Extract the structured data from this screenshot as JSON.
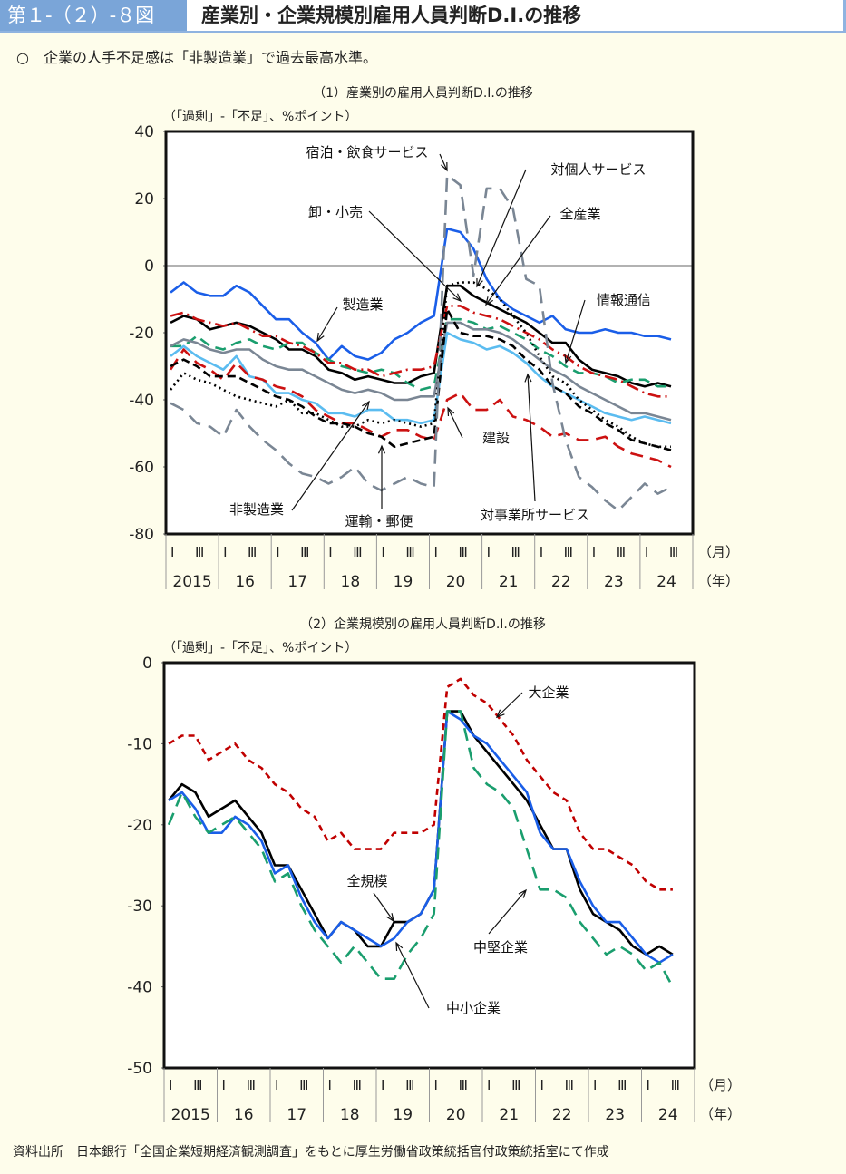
{
  "header": {
    "figure_number": "第１-（２）-８図",
    "title": "産業別・企業規模別雇用人員判断D.I.の推移"
  },
  "lead": "○　企業の人手不足感は「非製造業」で過去最高水準。",
  "source": "資料出所　日本銀行「全国企業短期経済観測調査」をもとに厚生労働省政策統括官付政策統括室にて作成",
  "colors": {
    "background": "#fefdeb",
    "header_accent": "#7aa5d8"
  },
  "chart_data": [
    {
      "type": "line",
      "title": "（1）産業別の雇用人員判断D.I.の推移",
      "ylabel": "（「過剰」-「不足」、%ポイント）",
      "ylim": [
        -80,
        40
      ],
      "yticks": [
        "40",
        "20",
        "0",
        "-20",
        "-40",
        "-60",
        "-80"
      ],
      "ytick_values": [
        40,
        20,
        0,
        -20,
        -40,
        -60,
        -80
      ],
      "month_label": "（月）",
      "year_label": "（年）",
      "quarter_labels": [
        "Ⅰ",
        "Ⅲ"
      ],
      "years": [
        "2015",
        "16",
        "17",
        "18",
        "19",
        "20",
        "21",
        "22",
        "23",
        "24"
      ],
      "series": [
        {
          "name": "製造業",
          "color": "#1a5ee8",
          "dash": "",
          "values": [
            -8,
            -5,
            -8,
            -9,
            -9,
            -6,
            -8,
            -12,
            -16,
            -16,
            -20,
            -23,
            -28,
            -24,
            -27,
            -28,
            -26,
            -22,
            -20,
            -17,
            -15,
            11,
            10,
            5,
            -4,
            -10,
            -13,
            -15,
            -17,
            -15,
            -19,
            -20,
            -20,
            -19,
            -20,
            -20,
            -21,
            -21,
            -22
          ]
        },
        {
          "name": "全産業",
          "color": "#000000",
          "dash": "",
          "values": [
            -17,
            -15,
            -16,
            -19,
            -18,
            -17,
            -18,
            -20,
            -22,
            -25,
            -25,
            -27,
            -31,
            -32,
            -34,
            -33,
            -34,
            -35,
            -35,
            -33,
            -32,
            -6,
            -6,
            -9,
            -11,
            -13,
            -15,
            -17,
            -20,
            -23,
            -23,
            -28,
            -31,
            -32,
            -33,
            -35,
            -36,
            -35,
            -36
          ]
        },
        {
          "name": "情報通信",
          "color": "#1a9e6e",
          "dash": "12,7",
          "values": [
            -24,
            -24,
            -21,
            -24,
            -25,
            -23,
            -22,
            -24,
            -25,
            -23,
            -23,
            -26,
            -28,
            -30,
            -31,
            -32,
            -31,
            -32,
            -35,
            -37,
            -36,
            -16,
            -16,
            -17,
            -19,
            -18,
            -20,
            -22,
            -25,
            -27,
            -30,
            -32,
            -32,
            -33,
            -35,
            -34,
            -34,
            -36,
            -36
          ]
        },
        {
          "name": "卸・小売",
          "color": "#cc1111",
          "dash": "14,5,2,5",
          "values": [
            -15,
            -14,
            -16,
            -17,
            -18,
            -17,
            -19,
            -21,
            -21,
            -23,
            -24,
            -26,
            -29,
            -29,
            -31,
            -31,
            -33,
            -32,
            -31,
            -31,
            -30,
            -12,
            -12,
            -14,
            -15,
            -16,
            -18,
            -20,
            -22,
            -25,
            -27,
            -30,
            -32,
            -33,
            -34,
            -36,
            -38,
            -39,
            -39
          ]
        },
        {
          "name": "非製造業",
          "color": "#7a8694",
          "dash": "",
          "values": [
            -24,
            -22,
            -23,
            -25,
            -26,
            -25,
            -25,
            -28,
            -30,
            -31,
            -31,
            -33,
            -35,
            -37,
            -38,
            -37,
            -38,
            -40,
            -40,
            -39,
            -39,
            -17,
            -17,
            -19,
            -19,
            -20,
            -22,
            -25,
            -28,
            -31,
            -33,
            -36,
            -38,
            -40,
            -42,
            -44,
            -44,
            -45,
            -46
          ]
        },
        {
          "name": "対事業所サービス",
          "color": "#5bbcf0",
          "dash": "",
          "values": [
            -27,
            -24,
            -27,
            -29,
            -31,
            -27,
            -33,
            -34,
            -38,
            -38,
            -40,
            -41,
            -44,
            -44,
            -45,
            -43,
            -43,
            -46,
            -46,
            -47,
            -46,
            -20,
            -22,
            -23,
            -25,
            -24,
            -26,
            -29,
            -33,
            -36,
            -38,
            -40,
            -42,
            -44,
            -45,
            -46,
            -45,
            -46,
            -47
          ]
        },
        {
          "name": "建設",
          "color": "#cc1111",
          "dash": "14,8",
          "values": [
            -31,
            -25,
            -29,
            -31,
            -34,
            -29,
            -33,
            -34,
            -36,
            -37,
            -39,
            -43,
            -45,
            -47,
            -47,
            -49,
            -51,
            -49,
            -49,
            -51,
            -52,
            -40,
            -38,
            -43,
            -43,
            -40,
            -45,
            -46,
            -48,
            -51,
            -50,
            -52,
            -52,
            -51,
            -54,
            -56,
            -57,
            -58,
            -60
          ]
        },
        {
          "name": "運輸・郵便",
          "color": "#000000",
          "dash": "9,5",
          "values": [
            -30,
            -28,
            -30,
            -33,
            -33,
            -33,
            -35,
            -37,
            -39,
            -40,
            -42,
            -45,
            -47,
            -47,
            -48,
            -50,
            -51,
            -54,
            -53,
            -52,
            -51,
            -13,
            -20,
            -21,
            -21,
            -22,
            -24,
            -28,
            -31,
            -36,
            -38,
            -42,
            -44,
            -47,
            -49,
            -52,
            -53,
            -54,
            -55
          ]
        },
        {
          "name": "対個人サービス",
          "color": "#000000",
          "dash": "2,4",
          "values": [
            -37,
            -32,
            -34,
            -35,
            -37,
            -39,
            -40,
            -41,
            -42,
            -40,
            -44,
            -44,
            -46,
            -48,
            -48,
            -46,
            -47,
            -46,
            -47,
            -48,
            -47,
            -6,
            -5,
            -5,
            -7,
            -10,
            -15,
            -20,
            -27,
            -33,
            -35,
            -40,
            -43,
            -46,
            -48,
            -51,
            -53,
            -54,
            -54
          ]
        },
        {
          "name": "宿泊・飲食サービス",
          "color": "#7a8694",
          "dash": "16,9",
          "values": [
            -41,
            -43,
            -47,
            -48,
            -51,
            -43,
            -48,
            -52,
            -55,
            -59,
            -62,
            -63,
            -65,
            -63,
            -60,
            -65,
            -67,
            -65,
            -63,
            -65,
            -66,
            27,
            24,
            -3,
            23,
            23,
            17,
            -4,
            -6,
            -35,
            -52,
            -63,
            -66,
            -70,
            -73,
            -69,
            -65,
            -68,
            -66
          ]
        }
      ],
      "annotations": [
        "宿泊・飲食サービス",
        "対個人サービス",
        "卸・小売",
        "全産業",
        "製造業",
        "情報通信",
        "建設",
        "非製造業",
        "運輸・郵便",
        "対事業所サービス"
      ]
    },
    {
      "type": "line",
      "title": "（2）企業規模別の雇用人員判断D.I.の推移",
      "ylabel": "（「過剰」-「不足」、%ポイント）",
      "ylim": [
        -50,
        0
      ],
      "yticks": [
        "0",
        "-10",
        "-20",
        "-30",
        "-40",
        "-50"
      ],
      "ytick_values": [
        0,
        -10,
        -20,
        -30,
        -40,
        -50
      ],
      "month_label": "（月）",
      "year_label": "（年）",
      "quarter_labels": [
        "Ⅰ",
        "Ⅲ"
      ],
      "years": [
        "2015",
        "16",
        "17",
        "18",
        "19",
        "20",
        "21",
        "22",
        "23",
        "24"
      ],
      "series": [
        {
          "name": "大企業",
          "color": "#c00000",
          "dash": "7,5",
          "values": [
            -10,
            -9,
            -9,
            -12,
            -11,
            -10,
            -12,
            -13,
            -15,
            -16,
            -18,
            -19,
            -22,
            -21,
            -23,
            -23,
            -23,
            -21,
            -21,
            -21,
            -20,
            -3,
            -2,
            -4,
            -5,
            -7,
            -9,
            -12,
            -14,
            -16,
            -17,
            -21,
            -23,
            -23,
            -24,
            -25,
            -27,
            -28,
            -28
          ]
        },
        {
          "name": "全規模",
          "color": "#000000",
          "dash": "",
          "values": [
            -17,
            -15,
            -16,
            -19,
            -18,
            -17,
            -19,
            -21,
            -25,
            -25,
            -28,
            -31,
            -34,
            -32,
            -33,
            -35,
            -35,
            -32,
            -32,
            -31,
            -28,
            -6,
            -6,
            -9,
            -11,
            -13,
            -15,
            -17,
            -20,
            -23,
            -23,
            -28,
            -31,
            -32,
            -33,
            -35,
            -36,
            -35,
            -36
          ]
        },
        {
          "name": "中堅企業",
          "color": "#1a5ee8",
          "dash": "",
          "values": [
            -17,
            -16,
            -18,
            -21,
            -21,
            -19,
            -20,
            -22,
            -26,
            -25,
            -29,
            -32,
            -34,
            -32,
            -33,
            -34,
            -35,
            -34,
            -32,
            -31,
            -28,
            -6,
            -7,
            -9,
            -10,
            -12,
            -14,
            -16,
            -21,
            -23,
            -23,
            -27,
            -30,
            -32,
            -32,
            -34,
            -36,
            -37,
            -36
          ]
        },
        {
          "name": "中小企業",
          "color": "#1a9e6e",
          "dash": "14,8",
          "values": [
            -20,
            -16,
            -19,
            -21,
            -20,
            -19,
            -21,
            -23,
            -27,
            -26,
            -30,
            -33,
            -35,
            -37,
            -35,
            -37,
            -39,
            -39,
            -36,
            -34,
            -31,
            -6,
            -6,
            -13,
            -15,
            -16,
            -18,
            -23,
            -28,
            -28,
            -29,
            -32,
            -34,
            -36,
            -35,
            -36,
            -38,
            -37,
            -40
          ]
        }
      ],
      "annotations": [
        "大企業",
        "全規模",
        "中小企業",
        "中堅企業"
      ]
    }
  ]
}
